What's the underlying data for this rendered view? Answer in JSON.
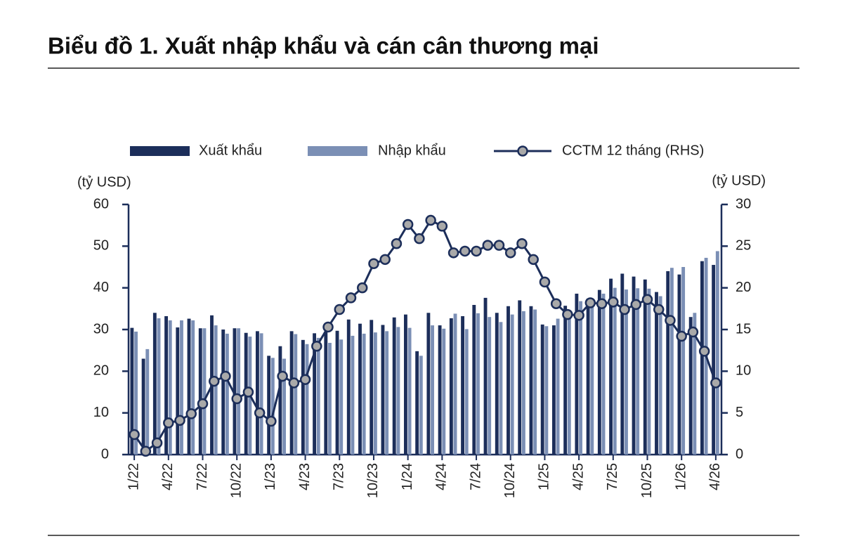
{
  "chart_data": {
    "type": "bar_line",
    "title": "Biểu đồ 1. Xuất nhập khẩu và cán cân thương mại",
    "y_label": "(tỷ USD)",
    "y2_label": "(tỷ USD)",
    "categories": [
      "1/22",
      null,
      null,
      "4/22",
      null,
      null,
      "7/22",
      null,
      null,
      "10/22",
      null,
      null,
      "1/23",
      null,
      null,
      "4/23",
      null,
      null,
      "7/23",
      null,
      null,
      "10/23",
      null,
      null,
      "1/24",
      null,
      null,
      "4/24",
      null,
      null,
      "7/24",
      null,
      null,
      "10/24",
      null,
      null,
      "1/25",
      null,
      null,
      "4/25",
      null,
      null,
      "7/25",
      null,
      null,
      "10/25",
      null,
      null,
      "1/26",
      null,
      null,
      "4/26"
    ],
    "series": [
      {
        "name": "Xuất khẩu",
        "color": "#1c2e5a",
        "kind": "bar",
        "values": [
          30.4,
          23,
          34,
          33.2,
          30.5,
          32.6,
          30.3,
          33.4,
          30,
          30.3,
          29.2,
          29.6,
          23.7,
          26,
          29.6,
          27.5,
          29.1,
          29.5,
          29.7,
          32.4,
          31.4,
          32.3,
          31.1,
          32.9,
          33.6,
          24.8,
          34,
          31,
          32.7,
          33.2,
          35.9,
          37.6,
          34,
          35.6,
          37,
          35.6,
          31.2,
          31,
          35.7,
          38.6,
          37.4,
          39.5,
          42.2,
          43.4,
          42.7,
          42,
          39,
          44,
          43.2,
          33,
          46.4,
          45.5
        ]
      },
      {
        "name": "Nhập khẩu",
        "color": "#7b8fb5",
        "kind": "bar",
        "values": [
          29.5,
          25.3,
          32.7,
          32.2,
          32.2,
          32.2,
          30.3,
          31,
          29,
          30.3,
          28.3,
          29.1,
          23.2,
          23,
          28.9,
          26.5,
          28,
          26.8,
          27.6,
          28.5,
          29,
          29.3,
          29.6,
          30.6,
          30.4,
          23.7,
          31,
          30.2,
          33.8,
          30.1,
          33.9,
          33,
          31.8,
          33.6,
          34.4,
          34.8,
          30.8,
          32.6,
          34.2,
          36.8,
          36.8,
          38.6,
          40,
          39.6,
          39.9,
          39.8,
          38,
          44.8,
          45,
          34,
          47.2,
          48.8
        ]
      },
      {
        "name": "CCTM 12 tháng (RHS)",
        "color": "#1c2e5a",
        "marker_color": "#a9a9a9",
        "kind": "line",
        "axis": "y2",
        "values": [
          2.4,
          0.4,
          1.4,
          3.8,
          4.1,
          4.9,
          6.1,
          8.8,
          9.4,
          6.7,
          7.5,
          5.0,
          4.0,
          9.4,
          8.6,
          9.0,
          13.0,
          15.3,
          17.4,
          18.8,
          20.0,
          22.9,
          23.4,
          25.3,
          27.6,
          25.9,
          28.1,
          27.4,
          24.2,
          24.4,
          24.4,
          25.1,
          25.1,
          24.2,
          25.3,
          23.4,
          20.7,
          18.1,
          16.8,
          16.7,
          18.2,
          18.1,
          18.3,
          17.4,
          18.0,
          18.6,
          17.4,
          16.1,
          14.2,
          14.7,
          12.4,
          8.6
        ]
      }
    ],
    "ylim": [
      0,
      60
    ],
    "yticks": [
      0,
      10,
      20,
      30,
      40,
      50,
      60
    ],
    "y2lim": [
      0,
      30
    ],
    "y2ticks": [
      0,
      5,
      10,
      15,
      20,
      25,
      30
    ]
  }
}
